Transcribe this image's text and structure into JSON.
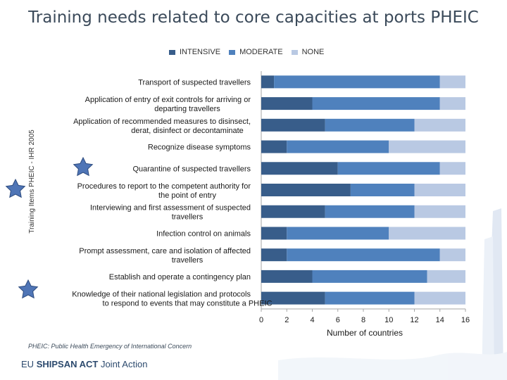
{
  "title": "Training needs related to core capacities at ports PHEIC",
  "footnote": "PHEIC: Public Health Emergency of International Concern",
  "footer": {
    "prefix": "EU",
    "brand": "SHIPSAN ACT",
    "suffix": "Joint Action"
  },
  "colors": {
    "intensive": "#385d8a",
    "moderate": "#4f81bd",
    "none": "#b9c9e3",
    "star": "#4f75b6"
  },
  "decorative_icons": [
    "star-icon",
    "star-icon",
    "star-icon",
    "ship-watermark-icon"
  ],
  "chart_data": {
    "type": "bar",
    "orientation": "horizontal",
    "stacked": true,
    "title": "",
    "xlabel": "Number of countries",
    "ylabel": "Training Items PHEIC - IHR 2005",
    "xlim": [
      0,
      16
    ],
    "xticks": [
      0,
      2,
      4,
      6,
      8,
      10,
      12,
      14,
      16
    ],
    "legend_position": "top",
    "categories": [
      {
        "line1": "Transport of suspected travellers",
        "line2": ""
      },
      {
        "line1": "Application of entry of exit controls for arriving or",
        "line2": "departing travellers"
      },
      {
        "line1": "Application of recommended measures to disinsect,",
        "line2": "derat, disinfect or decontaminate"
      },
      {
        "line1": "Recognize disease symptoms",
        "line2": ""
      },
      {
        "line1": "Quarantine of suspected travellers",
        "line2": ""
      },
      {
        "line1": "Procedures to report to the competent authority for",
        "line2": "the point of entry"
      },
      {
        "line1": "Interviewing and first assessment of suspected",
        "line2": "travellers"
      },
      {
        "line1": "Infection control on animals",
        "line2": ""
      },
      {
        "line1": "Prompt assessment, care and isolation of affected",
        "line2": "travellers"
      },
      {
        "line1": "Establish and operate a contingency plan",
        "line2": ""
      },
      {
        "line1": "Knowledge of their national legislation and protocols",
        "line2": "to respond to events that may constitute a PHEIC"
      }
    ],
    "series": [
      {
        "name": "INTENSIVE",
        "values": [
          1,
          4,
          5,
          2,
          6,
          7,
          5,
          2,
          2,
          4,
          5
        ]
      },
      {
        "name": "MODERATE",
        "values": [
          13,
          10,
          7,
          8,
          8,
          5,
          7,
          8,
          12,
          9,
          7
        ]
      },
      {
        "name": "NONE",
        "values": [
          2,
          2,
          4,
          6,
          2,
          4,
          4,
          6,
          2,
          3,
          4
        ]
      }
    ]
  }
}
